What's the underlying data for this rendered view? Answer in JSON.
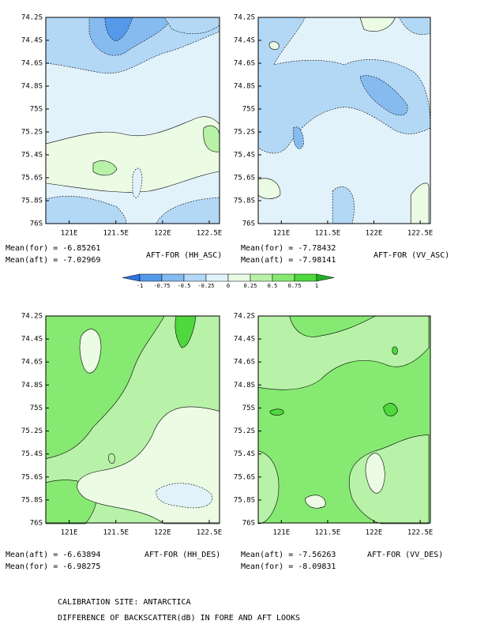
{
  "chart_data": [
    {
      "type": "contour",
      "title": "AFT-FOR (HH_ASC)",
      "stats": [
        "Mean(for) = -6.85261",
        "Mean(aft) = -7.02969"
      ],
      "xlim": [
        120.75,
        122.61
      ],
      "xticks": [
        {
          "value": 121,
          "label": "121E"
        },
        {
          "value": 121.5,
          "label": "121.5E"
        },
        {
          "value": 122,
          "label": "122E"
        },
        {
          "value": 122.5,
          "label": "122.5E"
        }
      ],
      "ylim": [
        -76,
        -74.2
      ],
      "yticks": [
        {
          "value": -74.2,
          "label": "74.2S"
        },
        {
          "value": -74.4,
          "label": "74.4S"
        },
        {
          "value": -74.6,
          "label": "74.6S"
        },
        {
          "value": -74.8,
          "label": "74.8S"
        },
        {
          "value": -75,
          "label": "75S"
        },
        {
          "value": -75.2,
          "label": "75.2S"
        },
        {
          "value": -75.4,
          "label": "75.4S"
        },
        {
          "value": -75.6,
          "label": "75.6S"
        },
        {
          "value": -75.8,
          "label": "75.8S"
        },
        {
          "value": -76,
          "label": "76S"
        }
      ]
    },
    {
      "type": "contour",
      "title": "AFT-FOR (VV_ASC)",
      "stats": [
        "Mean(for) = -7.78432",
        "Mean(aft) = -7.98141"
      ],
      "xlim": [
        120.75,
        122.61
      ],
      "xticks": [
        {
          "value": 121,
          "label": "121E"
        },
        {
          "value": 121.5,
          "label": "121.5E"
        },
        {
          "value": 122,
          "label": "122E"
        },
        {
          "value": 122.5,
          "label": "122.5E"
        }
      ],
      "ylim": [
        -76,
        -74.2
      ],
      "yticks": [
        {
          "value": -74.2,
          "label": "74.2S"
        },
        {
          "value": -74.4,
          "label": "74.4S"
        },
        {
          "value": -74.6,
          "label": "74.6S"
        },
        {
          "value": -74.8,
          "label": "74.8S"
        },
        {
          "value": -75,
          "label": "75S"
        },
        {
          "value": -75.2,
          "label": "75.2S"
        },
        {
          "value": -75.4,
          "label": "75.4S"
        },
        {
          "value": -75.6,
          "label": "75.6S"
        },
        {
          "value": -75.8,
          "label": "75.8S"
        },
        {
          "value": -76,
          "label": "76S"
        }
      ]
    },
    {
      "type": "contour",
      "title": "AFT-FOR (HH_DES)",
      "stats": [
        "Mean(aft) = -6.63894",
        "Mean(for) = -6.98275"
      ],
      "xlim": [
        120.75,
        122.61
      ],
      "xticks": [
        {
          "value": 121,
          "label": "121E"
        },
        {
          "value": 121.5,
          "label": "121.5E"
        },
        {
          "value": 122,
          "label": "122E"
        },
        {
          "value": 122.5,
          "label": "122.5E"
        }
      ],
      "ylim": [
        -76,
        -74.2
      ],
      "yticks": [
        {
          "value": -74.2,
          "label": "74.2S"
        },
        {
          "value": -74.4,
          "label": "74.4S"
        },
        {
          "value": -74.6,
          "label": "74.6S"
        },
        {
          "value": -74.8,
          "label": "74.8S"
        },
        {
          "value": -75,
          "label": "75S"
        },
        {
          "value": -75.2,
          "label": "75.2S"
        },
        {
          "value": -75.4,
          "label": "75.4S"
        },
        {
          "value": -75.6,
          "label": "75.6S"
        },
        {
          "value": -75.8,
          "label": "75.8S"
        },
        {
          "value": -76,
          "label": "76S"
        }
      ]
    },
    {
      "type": "contour",
      "title": "AFT-FOR (VV_DES)",
      "stats": [
        "Mean(aft) = -7.56263",
        "Mean(for) = -8.09831"
      ],
      "xlim": [
        120.75,
        122.61
      ],
      "xticks": [
        {
          "value": 121,
          "label": "121E"
        },
        {
          "value": 121.5,
          "label": "121.5E"
        },
        {
          "value": 122,
          "label": "122E"
        },
        {
          "value": 122.5,
          "label": "122.5E"
        }
      ],
      "ylim": [
        -76,
        -74.2
      ],
      "yticks": [
        {
          "value": -74.2,
          "label": "74.2S"
        },
        {
          "value": -74.4,
          "label": "74.4S"
        },
        {
          "value": -74.6,
          "label": "74.6S"
        },
        {
          "value": -74.8,
          "label": "74.8S"
        },
        {
          "value": -75,
          "label": "75S"
        },
        {
          "value": -75.2,
          "label": "75.2S"
        },
        {
          "value": -75.4,
          "label": "75.4S"
        },
        {
          "value": -75.6,
          "label": "75.6S"
        },
        {
          "value": -75.8,
          "label": "75.8S"
        },
        {
          "value": -76,
          "label": "76S"
        }
      ]
    }
  ],
  "colorbar": {
    "levels": [
      -1,
      -0.75,
      -0.5,
      -0.25,
      0,
      0.25,
      0.5,
      0.75,
      1
    ],
    "colors": [
      "#2f73e2",
      "#5599ea",
      "#86bbf0",
      "#b3d8f6",
      "#e2f2fb",
      "#ebfbe4",
      "#b8f2a8",
      "#86ea72",
      "#4fd83e",
      "#22b023"
    ]
  },
  "footer": [
    "CALIBRATION SITE: ANTARCTICA",
    "DIFFERENCE OF BACKSCATTER(dB) IN FORE AND AFT LOOKS"
  ]
}
